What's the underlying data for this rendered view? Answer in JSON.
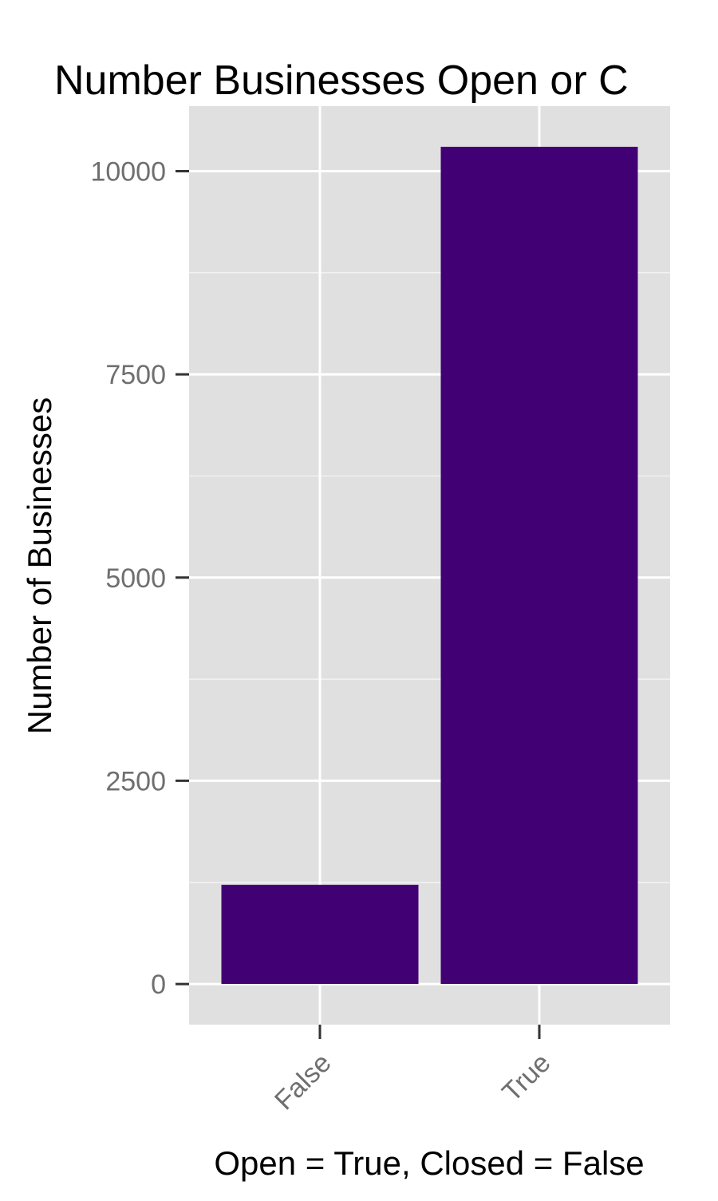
{
  "chart_data": {
    "type": "bar",
    "title": "Number Businesses Open or C",
    "xlabel": "Open = True, Closed = False",
    "ylabel": "Number of Businesses",
    "categories": [
      "False",
      "True"
    ],
    "values": [
      1220,
      10300
    ],
    "ylim": [
      -500,
      10800
    ],
    "yticks": [
      0,
      2500,
      5000,
      7500,
      10000
    ],
    "ytick_labels": [
      "0",
      "2500",
      "5000",
      "7500",
      "10000"
    ],
    "grid": true,
    "legend": "none",
    "colors": {
      "bar": "#420075",
      "panel": "#e0e0e0",
      "grid": "#ffffff",
      "tick_text": "#6f6f6f",
      "text": "#000000"
    }
  }
}
